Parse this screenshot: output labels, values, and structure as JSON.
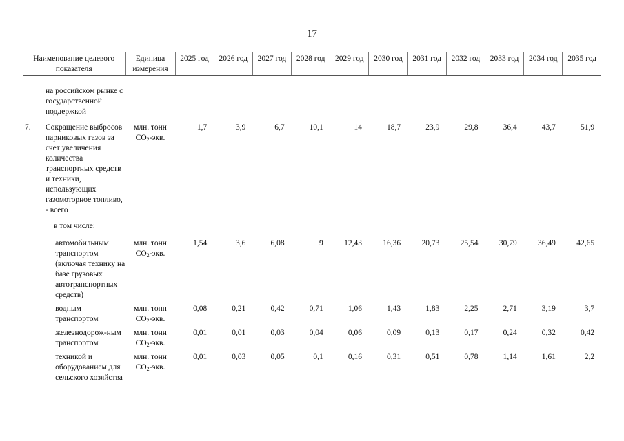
{
  "page_number": "17",
  "header": {
    "name": "Наименование целевого показателя",
    "unit": "Единица измерения",
    "years": [
      "2025 год",
      "2026 год",
      "2027 год",
      "2028 год",
      "2029 год",
      "2030 год",
      "2031 год",
      "2032 год",
      "2033 год",
      "2034 год",
      "2035 год"
    ]
  },
  "continuation_text": "на российском рынке с государственной поддержкой",
  "rows": [
    {
      "num": "7.",
      "name": "Сокращение выбросов парниковых газов за счет увеличения количества транспортных средств и техники, использующих газомоторное топливо, - всего",
      "unit_a": "млн. тонн",
      "unit_b": "CO",
      "unit_sub": "2",
      "unit_c": "-экв.",
      "values": [
        "1,7",
        "3,9",
        "6,7",
        "10,1",
        "14",
        "18,7",
        "23,9",
        "29,8",
        "36,4",
        "43,7",
        "51,9"
      ]
    }
  ],
  "sub_caption": "в том числе:",
  "sub_rows": [
    {
      "name": "автомобильным транспортом (включая технику на базе грузовых автотранспортных средств)",
      "unit_a": "млн. тонн",
      "unit_b": "CO",
      "unit_sub": "2",
      "unit_c": "-экв.",
      "values": [
        "1,54",
        "3,6",
        "6,08",
        "9",
        "12,43",
        "16,36",
        "20,73",
        "25,54",
        "30,79",
        "36,49",
        "42,65"
      ]
    },
    {
      "name": "водным транспортом",
      "unit_a": "млн. тонн",
      "unit_b": "CO",
      "unit_sub": "2",
      "unit_c": "-экв.",
      "values": [
        "0,08",
        "0,21",
        "0,42",
        "0,71",
        "1,06",
        "1,43",
        "1,83",
        "2,25",
        "2,71",
        "3,19",
        "3,7"
      ]
    },
    {
      "name": "железнодорож-ным транспортом",
      "unit_a": "млн. тонн",
      "unit_b": "CO",
      "unit_sub": "2",
      "unit_c": "-экв.",
      "values": [
        "0,01",
        "0,01",
        "0,03",
        "0,04",
        "0,06",
        "0,09",
        "0,13",
        "0,17",
        "0,24",
        "0,32",
        "0,42"
      ]
    },
    {
      "name": "техникой и оборудованием для сельского хозяйства",
      "unit_a": "млн. тонн",
      "unit_b": "CO",
      "unit_sub": "2",
      "unit_c": "-экв.",
      "values": [
        "0,01",
        "0,03",
        "0,05",
        "0,1",
        "0,16",
        "0,31",
        "0,51",
        "0,78",
        "1,14",
        "1,61",
        "2,2"
      ]
    }
  ]
}
